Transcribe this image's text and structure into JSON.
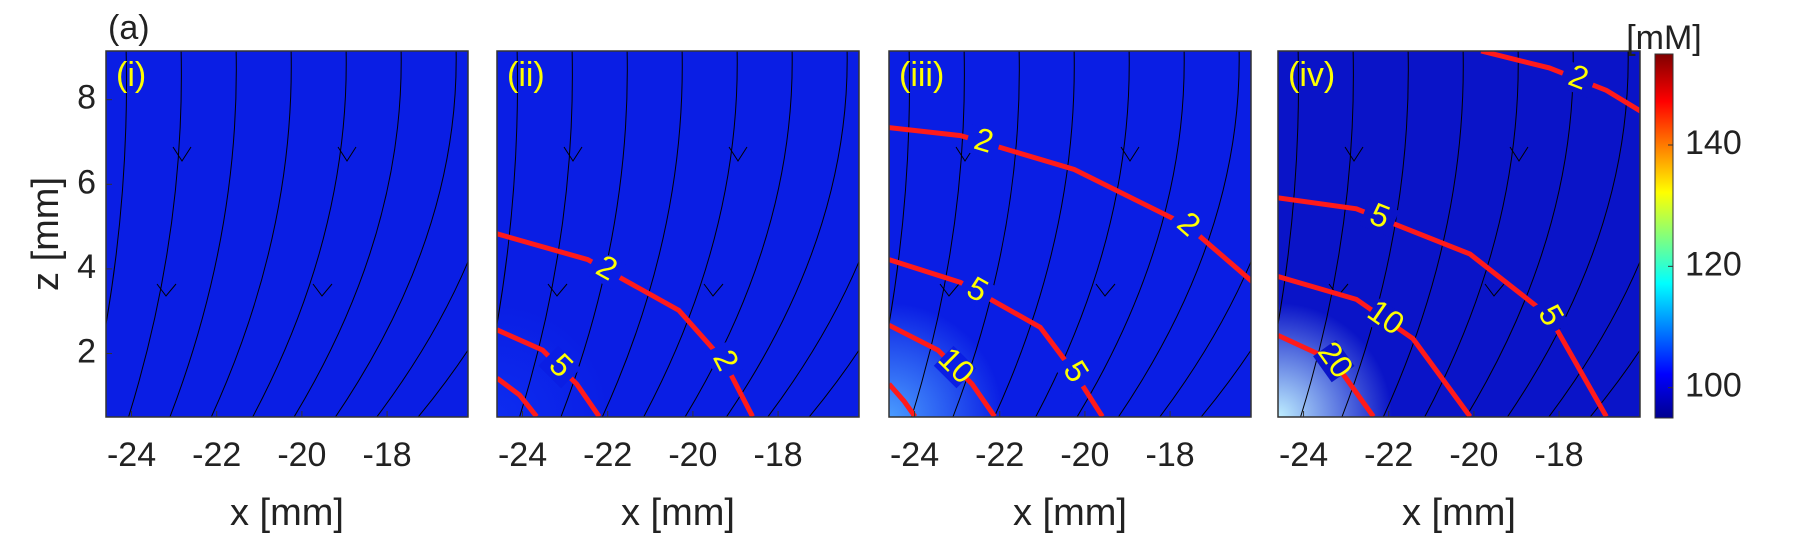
{
  "figure_label": "(a)",
  "colorbar": {
    "label": "[mM]",
    "lim": [
      95,
      155
    ],
    "ticks": [
      100,
      120,
      140
    ]
  },
  "chart_data": [
    {
      "type": "contour",
      "panel_label": "(i)",
      "xlabel": "x [mm]",
      "ylabel": "z [mm]",
      "xlim": [
        -24.6,
        -16.1
      ],
      "ylim": [
        0.5,
        9.15
      ],
      "xticks": [
        -24,
        -22,
        -20,
        -18
      ],
      "yticks": [
        2,
        4,
        6,
        8
      ],
      "base_color": "#0a1ee4",
      "hotspot_color": "#0a1ee4",
      "contour_color": "#ff1a1a",
      "label_color": "#ffff00",
      "contours": []
    },
    {
      "type": "contour",
      "panel_label": "(ii)",
      "xlabel": "x [mm]",
      "xlim": [
        -24.6,
        -16.1
      ],
      "ylim": [
        0.5,
        9.15
      ],
      "xticks": [
        -24,
        -22,
        -20,
        -18
      ],
      "base_color": "#0a1ee4",
      "hotspot_color": "#0d2cf0",
      "contour_color": "#ff1a1a",
      "label_color": "#ffff00",
      "contours": [
        {
          "level": 2,
          "x": [
            -24.6,
            -22.47,
            -20.33,
            -19.27,
            -18.6
          ],
          "z": [
            4.83,
            4.22,
            3.02,
            1.82,
            0.51
          ]
        },
        {
          "level": 5,
          "x": [
            -24.6,
            -23.53,
            -22.73,
            -22.2
          ],
          "z": [
            2.56,
            2.08,
            1.28,
            0.51
          ]
        },
        {
          "x": [
            -24.6,
            -24.07,
            -23.67
          ],
          "z": [
            1.42,
            1.02,
            0.51
          ]
        }
      ]
    },
    {
      "type": "contour",
      "panel_label": "(iii)",
      "xlabel": "x [mm]",
      "xlim": [
        -24.6,
        -16.1
      ],
      "ylim": [
        0.5,
        9.15
      ],
      "xticks": [
        -24,
        -22,
        -20,
        -18
      ],
      "base_color": "#0a1ee4",
      "hotspot_color": "#4a9cff",
      "contour_color": "#ff1a1a",
      "label_color": "#ffff00",
      "contours": [
        {
          "level": 2,
          "x": [
            -24.6,
            -22.92,
            -20.25,
            -17.59,
            -16.05
          ],
          "z": [
            7.34,
            7.15,
            6.35,
            5.02,
            3.68
          ]
        },
        {
          "level": 5,
          "x": [
            -24.6,
            -22.92,
            -21.05,
            -20.25,
            -19.59
          ],
          "z": [
            4.22,
            3.68,
            2.62,
            1.55,
            0.51
          ]
        },
        {
          "level": 10,
          "x": [
            -24.6,
            -23.45,
            -22.65,
            -22.12
          ],
          "z": [
            2.67,
            2.08,
            1.28,
            0.51
          ]
        },
        {
          "x": [
            -24.6,
            -24.25,
            -23.99
          ],
          "z": [
            1.28,
            0.88,
            0.51
          ]
        }
      ]
    },
    {
      "type": "contour",
      "panel_label": "(iv)",
      "xlabel": "x [mm]",
      "xlim": [
        -24.6,
        -16.1
      ],
      "ylim": [
        0.5,
        9.15
      ],
      "xticks": [
        -24,
        -22,
        -20,
        -18
      ],
      "base_color": "#0a14c8",
      "hotspot_color": "#bfefff",
      "contour_color": "#ff1a1a",
      "label_color": "#ffff00",
      "contours": [
        {
          "level": 2,
          "x": [
            -19.83,
            -18.23,
            -16.89,
            -16.01
          ],
          "z": [
            9.15,
            8.75,
            8.22,
            7.68
          ]
        },
        {
          "level": 5,
          "x": [
            -24.6,
            -22.76,
            -20.09,
            -18.23,
            -16.89
          ],
          "z": [
            5.68,
            5.42,
            4.35,
            2.88,
            0.51
          ]
        },
        {
          "level": 10,
          "x": [
            -24.6,
            -22.76,
            -21.43,
            -20.09
          ],
          "z": [
            3.82,
            3.28,
            2.35,
            0.51
          ]
        },
        {
          "level": 20,
          "x": [
            -24.6,
            -23.29,
            -22.36
          ],
          "z": [
            2.43,
            1.82,
            0.51
          ]
        }
      ]
    }
  ]
}
